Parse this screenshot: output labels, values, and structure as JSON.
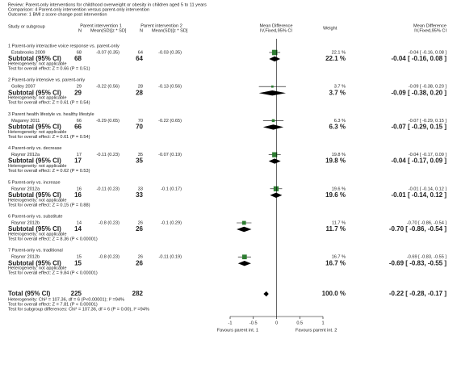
{
  "chart_data": {
    "type": "forest",
    "header": [
      "Review:   Parent-only interventions for childhood overweight or obesity in children aged 5 to 11 years",
      "Comparison:   4 Parent-only intervention versus parent-only intervention",
      "Outcome:   1 BMI z score change post intervention"
    ],
    "columns": {
      "study": "Study or subgroup",
      "group1": "Parent intervention 1",
      "n1": "N",
      "mean1": "Mean(SD)[z * SD]",
      "group2": "Parent intervention 2",
      "n2": "N",
      "mean2": "Mean(SD)[z * SD]",
      "plot": "Mean Difference",
      "plot_method": "IV,Fixed,95% CI",
      "weight": "Weight",
      "md": "Mean Difference",
      "md_method": "IV,Fixed,95% CI"
    },
    "subgroups": [
      {
        "title": "1 Parent-only interactive voice response vs. parent-only",
        "studies": [
          {
            "name": "Estabrooks 2009",
            "n1": 68,
            "mean1": "-0.07 (0.35)",
            "n2": 64,
            "mean2": "-0.03 (0.35)",
            "weight": 22.1,
            "weight_label": "22.1 %",
            "md": -0.04,
            "lo": -0.16,
            "hi": 0.08,
            "ci_label": "-0.04 [ -0.16, 0.08 ]"
          }
        ],
        "subtotal": {
          "label": "Subtotal (95% CI)",
          "n1": 68,
          "n2": 64,
          "weight_label": "22.1 %",
          "md": -0.04,
          "lo": -0.16,
          "hi": 0.08,
          "ci_label": "-0.04 [ -0.16, 0.08 ]"
        },
        "heterogeneity": "Heterogeneity: not applicable",
        "test": "Test for overall effect: Z = 0.66 (P = 0.51)"
      },
      {
        "title": "2 Parent-only intensive vs. parent-only",
        "studies": [
          {
            "name": "Golley 2007",
            "n1": 29,
            "mean1": "-0.22 (0.56)",
            "n2": 28,
            "mean2": "-0.13 (0.56)",
            "weight": 3.7,
            "weight_label": "3.7 %",
            "md": -0.09,
            "lo": -0.38,
            "hi": 0.2,
            "ci_label": "-0.09 [ -0.38, 0.20 ]"
          }
        ],
        "subtotal": {
          "label": "Subtotal (95% CI)",
          "n1": 29,
          "n2": 28,
          "weight_label": "3.7 %",
          "md": -0.09,
          "lo": -0.38,
          "hi": 0.2,
          "ci_label": "-0.09 [ -0.38, 0.20 ]"
        },
        "heterogeneity": "Heterogeneity: not applicable",
        "test": "Test for overall effect: Z = 0.61 (P = 0.54)"
      },
      {
        "title": "3 Parent health lifestyle vs. healthy lifestyle",
        "studies": [
          {
            "name": "Magarey 2011",
            "n1": 66,
            "mean1": "-0.29 (0.65)",
            "n2": 70,
            "mean2": "-0.22 (0.65)",
            "weight": 6.3,
            "weight_label": "6.3 %",
            "md": -0.07,
            "lo": -0.29,
            "hi": 0.15,
            "ci_label": "-0.07 [ -0.29, 0.15 ]"
          }
        ],
        "subtotal": {
          "label": "Subtotal (95% CI)",
          "n1": 66,
          "n2": 70,
          "weight_label": "6.3 %",
          "md": -0.07,
          "lo": -0.29,
          "hi": 0.15,
          "ci_label": "-0.07 [ -0.29, 0.15 ]"
        },
        "heterogeneity": "Heterogeneity: not applicable",
        "test": "Test for overall effect: Z = 0.61 (P = 0.54)"
      },
      {
        "title": "4 Parent-only vs. decrease",
        "studies": [
          {
            "name": "Raynor 2012a",
            "n1": 17,
            "mean1": "-0.11 (0.23)",
            "n2": 35,
            "mean2": "-0.07 (0.19)",
            "weight": 19.8,
            "weight_label": "19.8 %",
            "md": -0.04,
            "lo": -0.17,
            "hi": 0.09,
            "ci_label": "-0.04 [ -0.17, 0.09 ]"
          }
        ],
        "subtotal": {
          "label": "Subtotal (95% CI)",
          "n1": 17,
          "n2": 35,
          "weight_label": "19.8 %",
          "md": -0.04,
          "lo": -0.17,
          "hi": 0.09,
          "ci_label": "-0.04 [ -0.17, 0.09 ]"
        },
        "heterogeneity": "Heterogeneity: not applicable",
        "test": "Test for overall effect: Z = 0.62 (P = 0.53)"
      },
      {
        "title": "5 Parent-only vs. increase",
        "studies": [
          {
            "name": "Raynor 2012a",
            "n1": 16,
            "mean1": "-0.11 (0.23)",
            "n2": 33,
            "mean2": "-0.1 (0.17)",
            "weight": 19.6,
            "weight_label": "19.6 %",
            "md": -0.01,
            "lo": -0.14,
            "hi": 0.12,
            "ci_label": "-0.01 [ -0.14, 0.12 ]"
          }
        ],
        "subtotal": {
          "label": "Subtotal (95% CI)",
          "n1": 16,
          "n2": 33,
          "weight_label": "19.6 %",
          "md": -0.01,
          "lo": -0.14,
          "hi": 0.12,
          "ci_label": "-0.01 [ -0.14, 0.12 ]"
        },
        "heterogeneity": "Heterogeneity: not applicable",
        "test": "Test for overall effect: Z = 0.15 (P = 0.88)"
      },
      {
        "title": "6 Parent-only vs. substitute",
        "studies": [
          {
            "name": "Raynor 2012b",
            "n1": 14,
            "mean1": "-0.8 (0.23)",
            "n2": 26,
            "mean2": "-0.1 (0.29)",
            "weight": 11.7,
            "weight_label": "11.7 %",
            "md": -0.7,
            "lo": -0.86,
            "hi": -0.54,
            "ci_label": "-0.70 [ -0.86, -0.54 ]"
          }
        ],
        "subtotal": {
          "label": "Subtotal (95% CI)",
          "n1": 14,
          "n2": 26,
          "weight_label": "11.7 %",
          "md": -0.7,
          "lo": -0.86,
          "hi": -0.54,
          "ci_label": "-0.70 [ -0.86, -0.54 ]"
        },
        "heterogeneity": "Heterogeneity: not applicable",
        "test": "Test for overall effect: Z = 8.36 (P < 0.00001)"
      },
      {
        "title": "7 Parent-only vs. traditional",
        "studies": [
          {
            "name": "Raynor 2012b",
            "n1": 15,
            "mean1": "-0.8 (0.23)",
            "n2": 26,
            "mean2": "-0.11 (0.19)",
            "weight": 16.7,
            "weight_label": "16.7 %",
            "md": -0.69,
            "lo": -0.83,
            "hi": -0.55,
            "ci_label": "-0.69 [ -0.83, -0.55 ]"
          }
        ],
        "subtotal": {
          "label": "Subtotal (95% CI)",
          "n1": 15,
          "n2": 26,
          "weight_label": "16.7 %",
          "md": -0.69,
          "lo": -0.83,
          "hi": -0.55,
          "ci_label": "-0.69 [ -0.83, -0.55 ]"
        },
        "heterogeneity": "Heterogeneity: not applicable",
        "test": "Test for overall effect: Z = 9.84 (P < 0.00001)"
      }
    ],
    "total": {
      "label": "Total (95% CI)",
      "n1": 225,
      "n2": 282,
      "weight_label": "100.0 %",
      "md": -0.22,
      "lo": -0.28,
      "hi": -0.17,
      "ci_label": "-0.22 [ -0.28, -0.17 ]",
      "notes": [
        "Heterogeneity: Chi² = 107.36, df = 6 (P<0.00001); I² =94%",
        "Test for overall effect: Z = 7.81 (P < 0.00001)",
        "Test for subgroup differences: Chi² = 107.36, df = 6 (P = 0.00), I² =94%"
      ]
    },
    "xlim": [
      -1,
      1
    ],
    "xticks": [
      -1,
      -0.5,
      0,
      0.5,
      1
    ],
    "favours": [
      "Favours parent int. 1",
      "Favours parent int. 2"
    ],
    "color": "#2e7d32"
  }
}
